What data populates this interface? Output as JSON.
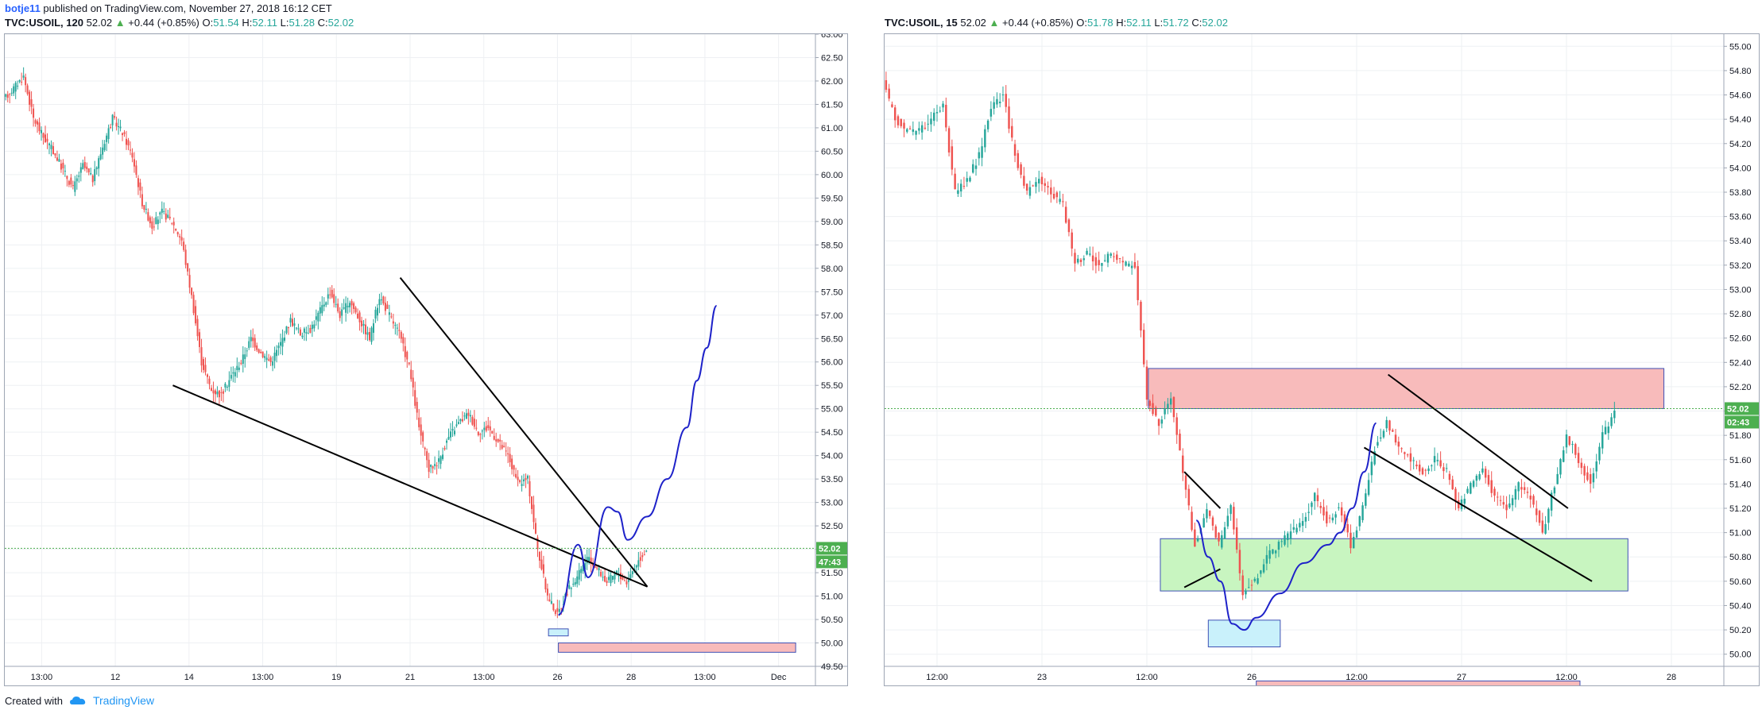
{
  "publish": {
    "user": "botje11",
    "text": "published on TradingView.com, November 27, 2018 16:12 CET"
  },
  "footer": {
    "created": "Created with",
    "brand": "TradingView"
  },
  "colors": {
    "up": "#26a69a",
    "down": "#ef5350",
    "pink_zone": "#f8bbbb",
    "green_zone": "#c8f5c0",
    "blue_zone": "#c9f1fb",
    "zone_border": "#3f51b5",
    "projection": "#1e22c9",
    "trendline": "#000000",
    "price_tag": "#4caf50"
  },
  "left": {
    "symbol": "TVC:USOIL, 120",
    "price": "52.02",
    "arrow": "▲",
    "change": "+0.44 (+0.85%)",
    "o_label": "O:",
    "o": "51.54",
    "h_label": "H:",
    "h": "52.11",
    "l_label": "L:",
    "l": "51.28",
    "c_label": "C:",
    "c": "52.02",
    "last_price_tag": "52.02",
    "countdown_tag": "47:43"
  },
  "right": {
    "symbol": "TVC:USOIL, 15",
    "price": "52.02",
    "arrow": "▲",
    "change": "+0.44 (+0.85%)",
    "o_label": "O:",
    "o": "51.78",
    "h_label": "H:",
    "h": "52.11",
    "l_label": "L:",
    "l": "51.72",
    "c_label": "C:",
    "c": "52.02",
    "last_price_tag": "52.02",
    "countdown_tag": "02:43"
  },
  "chart_data": [
    {
      "type": "candlestick",
      "symbol": "TVC:USOIL",
      "interval": "120",
      "ylim": [
        49.5,
        63.0
      ],
      "yticks": [
        49.5,
        50.0,
        50.5,
        51.0,
        51.5,
        52.0,
        52.5,
        53.0,
        53.5,
        54.0,
        54.5,
        55.0,
        55.5,
        56.0,
        56.5,
        57.0,
        57.5,
        58.0,
        58.5,
        59.0,
        59.5,
        60.0,
        60.5,
        61.0,
        61.5,
        62.0,
        62.5,
        63.0
      ],
      "ytick_labels": [
        "49.50",
        "50.00",
        "50.50",
        "51.00",
        "51.50",
        "52.00",
        "52.50",
        "53.00",
        "53.50",
        "54.00",
        "54.50",
        "55.00",
        "55.50",
        "56.00",
        "56.50",
        "57.00",
        "57.50",
        "58.00",
        "58.50",
        "59.00",
        "59.50",
        "60.00",
        "60.50",
        "61.00",
        "61.50",
        "62.00",
        "62.50",
        "63.00"
      ],
      "xtick_labels": [
        "13:00",
        "12",
        "14",
        "13:00",
        "19",
        "21",
        "13:00",
        "26",
        "28",
        "13:00",
        "Dec"
      ],
      "last_price": 52.02,
      "price_path": [
        [
          0,
          61.6
        ],
        [
          2,
          62.1
        ],
        [
          3,
          61.2
        ],
        [
          4,
          60.8
        ],
        [
          5,
          60.5
        ],
        [
          7,
          59.7
        ],
        [
          8,
          60.2
        ],
        [
          9,
          59.9
        ],
        [
          10,
          60.6
        ],
        [
          11,
          61.2
        ],
        [
          12,
          60.9
        ],
        [
          13,
          60.4
        ],
        [
          14,
          59.4
        ],
        [
          15,
          58.9
        ],
        [
          16,
          59.2
        ],
        [
          17,
          59.0
        ],
        [
          18,
          58.6
        ],
        [
          19,
          57.4
        ],
        [
          20,
          56.0
        ],
        [
          21,
          55.4
        ],
        [
          22,
          55.3
        ],
        [
          23,
          55.7
        ],
        [
          24,
          56.0
        ],
        [
          25,
          56.5
        ],
        [
          26,
          56.2
        ],
        [
          27,
          56.0
        ],
        [
          28,
          56.4
        ],
        [
          29,
          56.9
        ],
        [
          30,
          56.6
        ],
        [
          31,
          56.7
        ],
        [
          32,
          57.1
        ],
        [
          33,
          57.5
        ],
        [
          34,
          57.0
        ],
        [
          35,
          57.3
        ],
        [
          36,
          56.9
        ],
        [
          37,
          56.5
        ],
        [
          38,
          57.4
        ],
        [
          39,
          57.0
        ],
        [
          40,
          56.6
        ],
        [
          41,
          55.9
        ],
        [
          42,
          54.6
        ],
        [
          43,
          53.7
        ],
        [
          44,
          53.9
        ],
        [
          45,
          54.4
        ],
        [
          46,
          54.7
        ],
        [
          47,
          54.9
        ],
        [
          48,
          54.5
        ],
        [
          49,
          54.6
        ],
        [
          50,
          54.3
        ],
        [
          51,
          54.0
        ],
        [
          52,
          53.4
        ],
        [
          53,
          53.5
        ],
        [
          54,
          52.0
        ],
        [
          55,
          51.0
        ],
        [
          56,
          50.6
        ],
        [
          57,
          51.1
        ],
        [
          58,
          51.4
        ],
        [
          59,
          51.8
        ],
        [
          60,
          51.6
        ],
        [
          61,
          51.3
        ],
        [
          62,
          51.5
        ],
        [
          63,
          51.3
        ],
        [
          64,
          51.7
        ],
        [
          65,
          52.0
        ]
      ],
      "annotations": {
        "falling_wedge_upper": [
          [
            40,
            57.8
          ],
          [
            65,
            51.2
          ]
        ],
        "falling_wedge_lower": [
          [
            17,
            55.5
          ],
          [
            65,
            51.2
          ]
        ],
        "projection_points": [
          [
            56,
            50.6
          ],
          [
            58,
            52.1
          ],
          [
            59,
            51.4
          ],
          [
            61,
            52.9
          ],
          [
            62,
            52.8
          ],
          [
            63,
            52.2
          ],
          [
            65,
            52.7
          ],
          [
            67,
            53.5
          ],
          [
            69,
            54.6
          ],
          [
            70,
            55.6
          ],
          [
            71,
            56.3
          ],
          [
            72,
            57.2
          ]
        ],
        "pink_zone": [
          [
            56,
            50.0
          ],
          [
            80,
            49.8
          ]
        ],
        "blue_zone": [
          [
            55,
            50.3
          ],
          [
            57,
            50.15
          ]
        ]
      }
    },
    {
      "type": "candlestick",
      "symbol": "TVC:USOIL",
      "interval": "15",
      "ylim": [
        49.9,
        55.1
      ],
      "yticks": [
        50.0,
        50.2,
        50.4,
        50.6,
        50.8,
        51.0,
        51.2,
        51.4,
        51.6,
        51.8,
        52.0,
        52.2,
        52.4,
        52.6,
        52.8,
        53.0,
        53.2,
        53.4,
        53.6,
        53.8,
        54.0,
        54.2,
        54.4,
        54.6,
        54.8,
        55.0
      ],
      "ytick_labels": [
        "50.00",
        "50.20",
        "50.40",
        "50.60",
        "50.80",
        "51.00",
        "51.20",
        "51.40",
        "51.60",
        "51.80",
        "52.00",
        "52.20",
        "52.40",
        "52.60",
        "52.80",
        "53.00",
        "53.20",
        "53.40",
        "53.60",
        "53.80",
        "54.00",
        "54.20",
        "54.40",
        "54.60",
        "54.80",
        "55.00"
      ],
      "xtick_labels": [
        "12:00",
        "23",
        "12:00",
        "26",
        "12:00",
        "27",
        "12:00",
        "28"
      ],
      "last_price": 52.02,
      "price_path": [
        [
          0,
          54.7
        ],
        [
          1,
          54.4
        ],
        [
          2,
          54.3
        ],
        [
          3,
          54.3
        ],
        [
          4,
          54.4
        ],
        [
          5,
          54.5
        ],
        [
          6,
          53.8
        ],
        [
          7,
          53.9
        ],
        [
          8,
          54.1
        ],
        [
          9,
          54.5
        ],
        [
          10,
          54.6
        ],
        [
          11,
          54.1
        ],
        [
          12,
          53.8
        ],
        [
          13,
          53.9
        ],
        [
          14,
          53.8
        ],
        [
          15,
          53.7
        ],
        [
          16,
          53.2
        ],
        [
          17,
          53.3
        ],
        [
          18,
          53.2
        ],
        [
          19,
          53.3
        ],
        [
          20,
          53.2
        ],
        [
          21,
          53.2
        ],
        [
          22,
          52.1
        ],
        [
          23,
          51.9
        ],
        [
          24,
          52.1
        ],
        [
          25,
          51.5
        ],
        [
          26,
          50.9
        ],
        [
          27,
          51.2
        ],
        [
          28,
          50.9
        ],
        [
          29,
          51.2
        ],
        [
          30,
          50.5
        ],
        [
          31,
          50.6
        ],
        [
          32,
          50.8
        ],
        [
          33,
          50.9
        ],
        [
          34,
          51.0
        ],
        [
          35,
          51.1
        ],
        [
          36,
          51.3
        ],
        [
          37,
          51.1
        ],
        [
          38,
          51.2
        ],
        [
          39,
          50.9
        ],
        [
          40,
          51.2
        ],
        [
          41,
          51.7
        ],
        [
          42,
          51.9
        ],
        [
          43,
          51.7
        ],
        [
          44,
          51.6
        ],
        [
          45,
          51.5
        ],
        [
          46,
          51.6
        ],
        [
          47,
          51.5
        ],
        [
          48,
          51.2
        ],
        [
          49,
          51.4
        ],
        [
          50,
          51.5
        ],
        [
          51,
          51.3
        ],
        [
          52,
          51.2
        ],
        [
          53,
          51.4
        ],
        [
          54,
          51.3
        ],
        [
          55,
          51.0
        ],
        [
          56,
          51.4
        ],
        [
          57,
          51.8
        ],
        [
          58,
          51.6
        ],
        [
          59,
          51.4
        ],
        [
          60,
          51.8
        ],
        [
          61,
          52.0
        ]
      ],
      "annotations": {
        "pink_zone": [
          [
            22,
            52.35
          ],
          [
            65,
            52.02
          ]
        ],
        "green_zone": [
          [
            23,
            50.95
          ],
          [
            62,
            50.52
          ]
        ],
        "blue_zone": [
          [
            27,
            50.28
          ],
          [
            33,
            50.06
          ]
        ],
        "bottom_pink_zone": [
          [
            31,
            49.78
          ],
          [
            58,
            49.74
          ]
        ],
        "channel_upper": [
          [
            42,
            52.3
          ],
          [
            57,
            51.2
          ]
        ],
        "channel_lower": [
          [
            40,
            51.7
          ],
          [
            59,
            50.6
          ]
        ],
        "small_flag_upper": [
          [
            25,
            51.5
          ],
          [
            28,
            51.2
          ]
        ],
        "small_flag_lower": [
          [
            25,
            50.55
          ],
          [
            28,
            50.7
          ]
        ],
        "projection_points": [
          [
            26,
            51.1
          ],
          [
            27,
            50.8
          ],
          [
            28,
            50.6
          ],
          [
            29,
            50.25
          ],
          [
            30,
            50.2
          ],
          [
            31,
            50.3
          ],
          [
            33,
            50.5
          ],
          [
            35,
            50.75
          ],
          [
            37,
            50.9
          ],
          [
            38,
            51.0
          ],
          [
            39,
            51.2
          ],
          [
            40,
            51.5
          ],
          [
            41,
            51.9
          ]
        ]
      }
    }
  ]
}
